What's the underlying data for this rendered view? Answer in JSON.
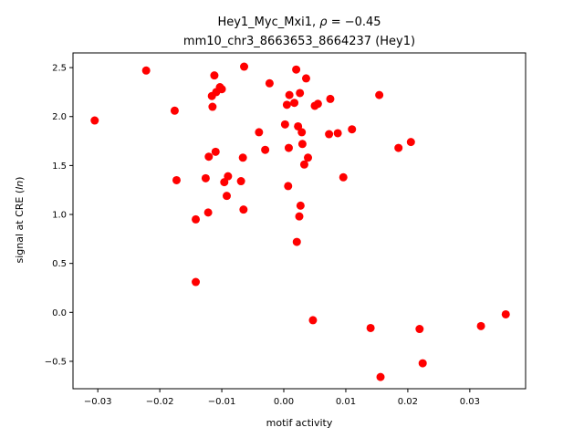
{
  "chart_data": {
    "type": "scatter",
    "title_line1_prefix": "Hey1_Myc_Mxi1, ",
    "title_line1_rho": "ρ",
    "title_line1_suffix": " = −0.45",
    "title_line2": "mm10_chr3_8663653_8664237 (Hey1)",
    "xlabel": "motif activity",
    "ylabel_prefix": "signal at CRE (",
    "ylabel_italic": "ln",
    "ylabel_suffix": ")",
    "xlim": [
      -0.034,
      0.039
    ],
    "ylim": [
      -0.78,
      2.65
    ],
    "xticks": [
      -0.03,
      -0.02,
      -0.01,
      0.0,
      0.01,
      0.02,
      0.03
    ],
    "xtick_labels": [
      "−0.03",
      "−0.02",
      "−0.01",
      "0.00",
      "0.01",
      "0.02",
      "0.03"
    ],
    "yticks": [
      -0.5,
      0.0,
      0.5,
      1.0,
      1.5,
      2.0,
      2.5
    ],
    "ytick_labels": [
      "−0.5",
      "0.0",
      "0.5",
      "1.0",
      "1.5",
      "2.0",
      "2.5"
    ],
    "grid": false,
    "marker_color": "#ff0000",
    "points": [
      {
        "x": -0.0305,
        "y": 1.96
      },
      {
        "x": -0.0222,
        "y": 2.47
      },
      {
        "x": -0.0176,
        "y": 2.06
      },
      {
        "x": -0.0173,
        "y": 1.35
      },
      {
        "x": -0.0142,
        "y": 0.95
      },
      {
        "x": -0.0142,
        "y": 0.31
      },
      {
        "x": -0.0126,
        "y": 1.37
      },
      {
        "x": -0.0122,
        "y": 1.02
      },
      {
        "x": -0.0121,
        "y": 1.59
      },
      {
        "x": -0.0116,
        "y": 2.21
      },
      {
        "x": -0.0115,
        "y": 2.1
      },
      {
        "x": -0.0112,
        "y": 2.42
      },
      {
        "x": -0.011,
        "y": 1.64
      },
      {
        "x": -0.0109,
        "y": 2.25
      },
      {
        "x": -0.0103,
        "y": 2.3
      },
      {
        "x": -0.01,
        "y": 2.28
      },
      {
        "x": -0.0096,
        "y": 1.33
      },
      {
        "x": -0.0092,
        "y": 1.19
      },
      {
        "x": -0.009,
        "y": 1.39
      },
      {
        "x": -0.0069,
        "y": 1.34
      },
      {
        "x": -0.0066,
        "y": 1.58
      },
      {
        "x": -0.0065,
        "y": 1.05
      },
      {
        "x": -0.0064,
        "y": 2.51
      },
      {
        "x": -0.004,
        "y": 1.84
      },
      {
        "x": -0.003,
        "y": 1.66
      },
      {
        "x": -0.0023,
        "y": 2.34
      },
      {
        "x": 0.0002,
        "y": 1.92
      },
      {
        "x": 0.0005,
        "y": 2.12
      },
      {
        "x": 0.0007,
        "y": 1.29
      },
      {
        "x": 0.0008,
        "y": 1.68
      },
      {
        "x": 0.0009,
        "y": 2.22
      },
      {
        "x": 0.0017,
        "y": 2.14
      },
      {
        "x": 0.002,
        "y": 2.48
      },
      {
        "x": 0.0021,
        "y": 0.72
      },
      {
        "x": 0.0023,
        "y": 1.9
      },
      {
        "x": 0.0025,
        "y": 0.98
      },
      {
        "x": 0.0026,
        "y": 2.24
      },
      {
        "x": 0.0027,
        "y": 1.09
      },
      {
        "x": 0.0029,
        "y": 1.84
      },
      {
        "x": 0.003,
        "y": 1.72
      },
      {
        "x": 0.0033,
        "y": 1.51
      },
      {
        "x": 0.0036,
        "y": 2.39
      },
      {
        "x": 0.0039,
        "y": 1.58
      },
      {
        "x": 0.0047,
        "y": -0.08
      },
      {
        "x": 0.005,
        "y": 2.11
      },
      {
        "x": 0.0055,
        "y": 2.13
      },
      {
        "x": 0.0073,
        "y": 1.82
      },
      {
        "x": 0.0075,
        "y": 2.18
      },
      {
        "x": 0.0087,
        "y": 1.83
      },
      {
        "x": 0.0096,
        "y": 1.38
      },
      {
        "x": 0.011,
        "y": 1.87
      },
      {
        "x": 0.014,
        "y": -0.16
      },
      {
        "x": 0.0154,
        "y": 2.22
      },
      {
        "x": 0.0156,
        "y": -0.66
      },
      {
        "x": 0.0185,
        "y": 1.68
      },
      {
        "x": 0.0205,
        "y": 1.74
      },
      {
        "x": 0.0219,
        "y": -0.17
      },
      {
        "x": 0.0224,
        "y": -0.52
      },
      {
        "x": 0.0318,
        "y": -0.14
      },
      {
        "x": 0.0358,
        "y": -0.02
      }
    ]
  }
}
